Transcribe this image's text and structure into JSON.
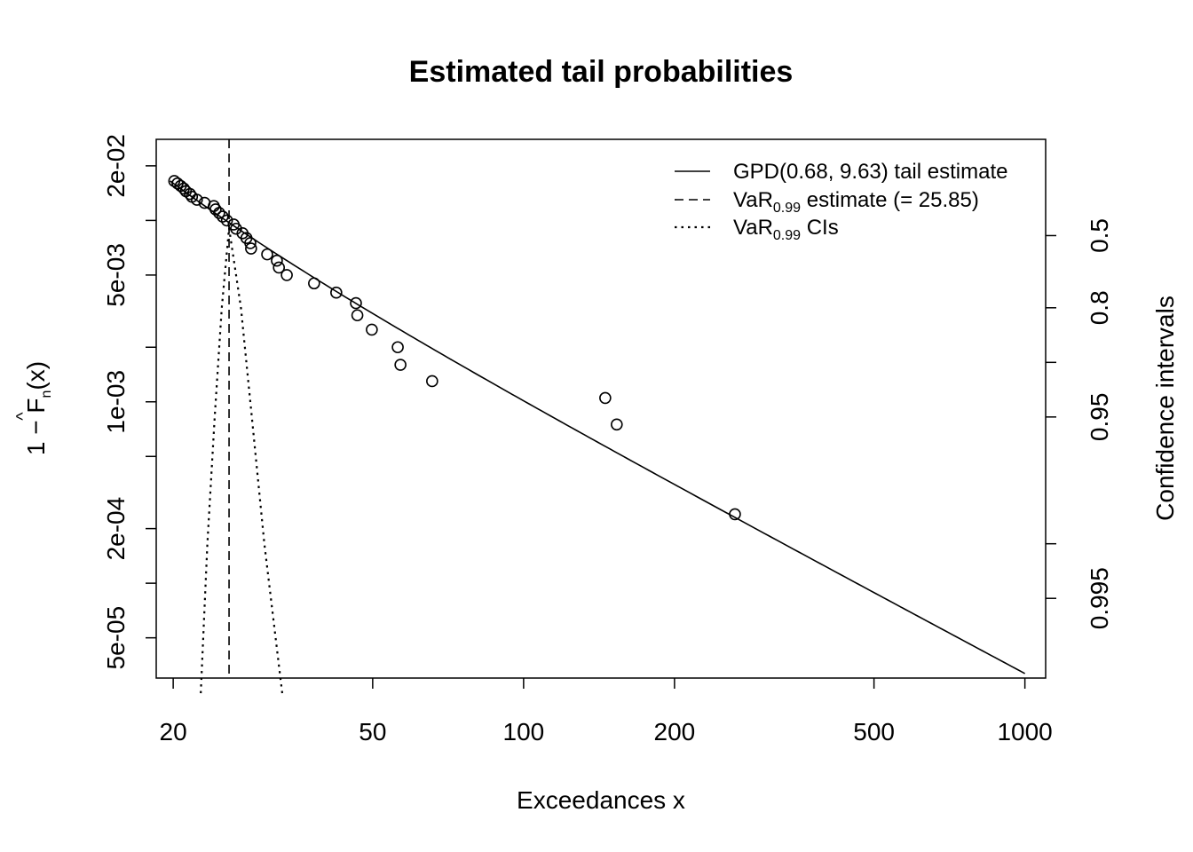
{
  "chart_data": {
    "type": "scatter",
    "title": "Estimated tail probabilities",
    "xlabel": "Exceedances x",
    "ylabel": "1 − F̂n(x)",
    "ylabel_parts": {
      "lead": "1 − ",
      "f": "F",
      "hat": "^",
      "sub": "n",
      "tail": "(x)"
    },
    "y2label": "Confidence intervals",
    "x_scale": "log",
    "y_scale": "log",
    "xlim": [
      18.5,
      1100
    ],
    "ylim": [
      3e-05,
      0.028
    ],
    "x_ticks": [
      20,
      50,
      100,
      200,
      500,
      1000
    ],
    "x_tick_labels": [
      "20",
      "50",
      "100",
      "200",
      "500",
      "1000"
    ],
    "y_ticks": [
      0.02,
      0.01,
      0.005,
      0.002,
      0.001,
      0.0005,
      0.0002,
      0.0001,
      5e-05
    ],
    "y_tick_labels": [
      "2e-02",
      "",
      "5e-03",
      "",
      "1e-03",
      "",
      "2e-04",
      "",
      "5e-05"
    ],
    "y2_ticks": [
      0.5,
      0.8,
      0.9,
      0.95,
      0.99,
      0.995
    ],
    "y2_tick_labels": [
      "0.5",
      "0.8",
      "",
      "0.95",
      "",
      "0.995"
    ],
    "legend_position": "top-right",
    "legend": [
      {
        "style": "solid",
        "text": "GPD(0.68, 9.63) tail estimate"
      },
      {
        "style": "dashed",
        "text_main": "VaR",
        "text_sub": "0.99",
        "text_rest": " estimate (= 25.85)"
      },
      {
        "style": "dotted",
        "text_main": "VaR",
        "text_sub": "0.99",
        "text_rest": " CIs"
      }
    ],
    "gpd": {
      "xi": 0.68,
      "beta": 9.63,
      "u": 19.72,
      "p_u": 0.0165,
      "x_range": [
        19.72,
        1000
      ]
    },
    "var_estimate": 25.85,
    "ci_curve_left": {
      "x": [
        22.7,
        23.4,
        24.2,
        25.0,
        25.85
      ],
      "conf": [
        0.9985,
        0.99,
        0.95,
        0.8,
        0.45
      ]
    },
    "ci_curve_right": {
      "x": [
        25.85,
        27.3,
        28.7,
        30.4,
        33.0
      ],
      "conf": [
        0.45,
        0.8,
        0.95,
        0.99,
        0.9985
      ]
    },
    "points": {
      "x": [
        20.1,
        20.4,
        20.7,
        21.0,
        21.2,
        21.6,
        21.8,
        22.3,
        23.1,
        24.1,
        24.3,
        24.7,
        25.1,
        25.6,
        26.4,
        26.7,
        27.5,
        28.0,
        28.5,
        28.6,
        30.8,
        32.2,
        32.5,
        33.7,
        38.2,
        42.3,
        46.3,
        46.6,
        49.8,
        56.1,
        56.8,
        65.7,
        145.5,
        153.4,
        264.0
      ],
      "y": [
        0.0165,
        0.016,
        0.0155,
        0.015,
        0.0145,
        0.014,
        0.0135,
        0.013,
        0.0125,
        0.012,
        0.0115,
        0.011,
        0.0105,
        0.01,
        0.0095,
        0.009,
        0.0085,
        0.008,
        0.0075,
        0.007,
        0.0065,
        0.006,
        0.0055,
        0.005,
        0.0045,
        0.004,
        0.0035,
        0.003,
        0.0025,
        0.002,
        0.0016,
        0.0013,
        0.00105,
        0.00075,
        0.00024
      ]
    }
  }
}
